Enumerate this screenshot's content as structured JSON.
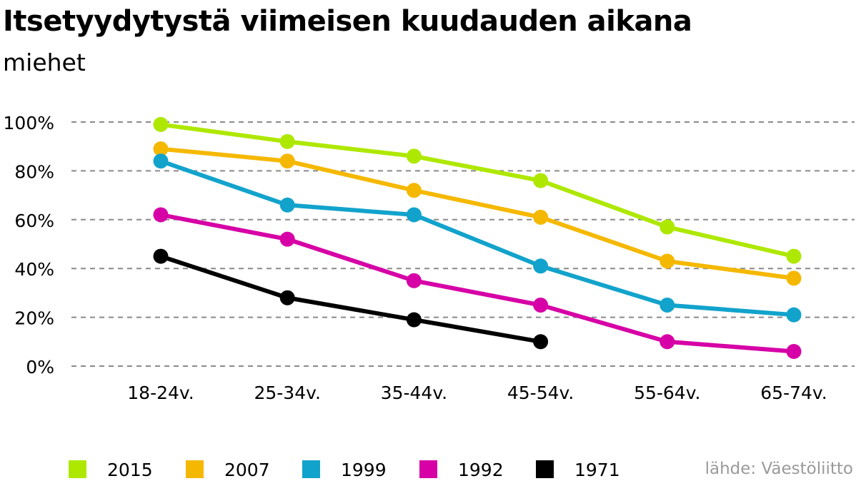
{
  "chart_data": {
    "type": "line",
    "title": "Itsetyydytystä viimeisen kuudauden aikana",
    "subtitle": "miehet",
    "xlabel": "",
    "ylabel": "",
    "categories": [
      "18-24v.",
      "25-34v.",
      "35-44v.",
      "45-54v.",
      "55-64v.",
      "65-74v."
    ],
    "ylim": [
      0,
      100
    ],
    "yticks": [
      0,
      20,
      40,
      60,
      80,
      100
    ],
    "ytick_labels": [
      "0%",
      "20%",
      "40%",
      "60%",
      "80%",
      "100%"
    ],
    "grid": "dashed horizontal",
    "legend_position": "bottom",
    "series": [
      {
        "name": "2015",
        "color": "#aee800",
        "values": [
          99,
          92,
          86,
          76,
          57,
          45
        ]
      },
      {
        "name": "2007",
        "color": "#f5b800",
        "values": [
          89,
          84,
          72,
          61,
          43,
          36
        ]
      },
      {
        "name": "1999",
        "color": "#12a3cc",
        "values": [
          84,
          66,
          62,
          41,
          25,
          21
        ]
      },
      {
        "name": "1992",
        "color": "#d600a6",
        "values": [
          62,
          52,
          35,
          25,
          10,
          6
        ]
      },
      {
        "name": "1971",
        "color": "#000000",
        "values": [
          45,
          28,
          19,
          10,
          null,
          null
        ]
      }
    ],
    "source": "lähde: Väestöliitto"
  }
}
